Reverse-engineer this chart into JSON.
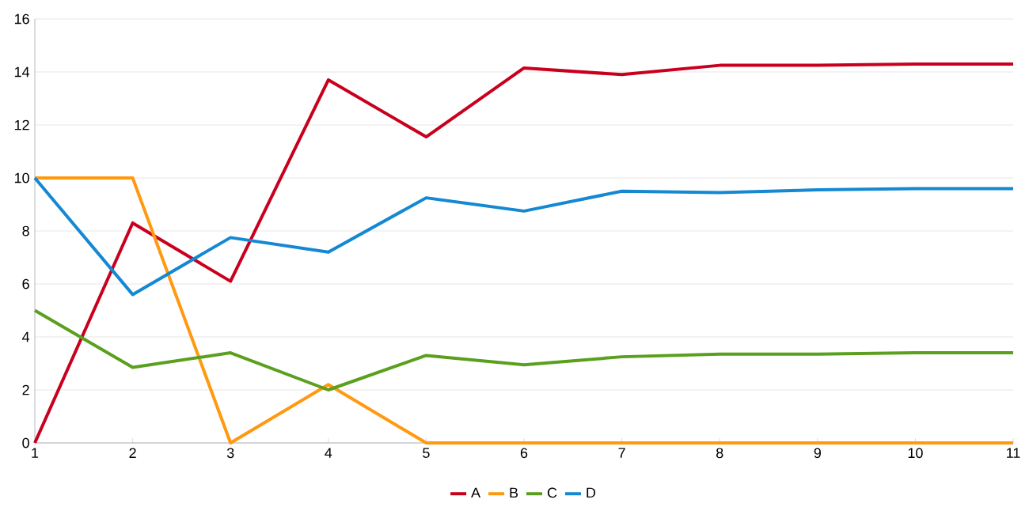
{
  "chart_data": {
    "type": "line",
    "x": [
      1,
      2,
      3,
      4,
      5,
      6,
      7,
      8,
      9,
      10,
      11
    ],
    "series": [
      {
        "name": "A",
        "color": "#c8001e",
        "values": [
          0,
          8.3,
          6.1,
          13.7,
          11.55,
          14.15,
          13.9,
          14.25,
          14.25,
          14.3,
          14.3
        ]
      },
      {
        "name": "B",
        "color": "#ff9910",
        "values": [
          10,
          10,
          0,
          2.2,
          0,
          0,
          0,
          0,
          0,
          0,
          0
        ]
      },
      {
        "name": "C",
        "color": "#5aa01e",
        "values": [
          5,
          2.85,
          3.4,
          2.0,
          3.3,
          2.95,
          3.25,
          3.35,
          3.35,
          3.4,
          3.4
        ]
      },
      {
        "name": "D",
        "color": "#1488d2",
        "values": [
          10,
          5.6,
          7.75,
          7.2,
          9.25,
          8.75,
          9.5,
          9.45,
          9.55,
          9.6,
          9.6
        ]
      }
    ],
    "xlim": [
      1,
      11
    ],
    "xticks": [
      1,
      2,
      3,
      4,
      5,
      6,
      7,
      8,
      9,
      10,
      11
    ],
    "ylim": [
      0,
      16
    ],
    "yticks": [
      0,
      2,
      4,
      6,
      8,
      10,
      12,
      14,
      16
    ],
    "grid": "y",
    "legend": "bottom",
    "marker": "none",
    "line_style": "solid"
  }
}
